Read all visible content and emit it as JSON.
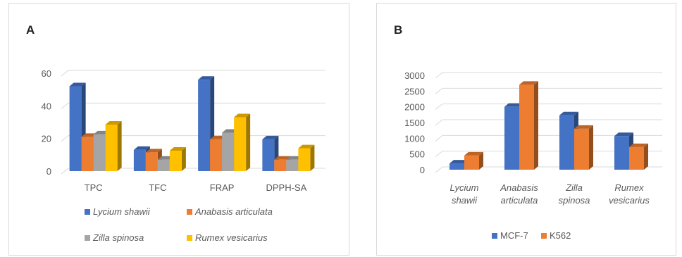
{
  "colors": {
    "blue": "#4472C4",
    "orange": "#ED7D31",
    "gray": "#A5A5A5",
    "yellow": "#FFC000",
    "grid": "#d9d9d9",
    "text": "#595959"
  },
  "panels": {
    "a_label": "A",
    "b_label": "B"
  },
  "chart_data": [
    {
      "type": "bar",
      "panel": "A",
      "title": "",
      "categories": [
        "TPC",
        "TFC",
        "FRAP",
        "DPPH-SA"
      ],
      "series": [
        {
          "name": "Lycium shawii",
          "color": "#4472C4",
          "values": [
            52,
            13,
            56,
            19.5
          ]
        },
        {
          "name": "Anabasis articulata",
          "color": "#ED7D31",
          "values": [
            21,
            11.5,
            19.5,
            7
          ]
        },
        {
          "name": "Zilla spinosa",
          "color": "#A5A5A5",
          "values": [
            22.5,
            7,
            23.5,
            7
          ]
        },
        {
          "name": "Rumex vesicarius",
          "color": "#FFC000",
          "values": [
            28.5,
            12.5,
            33,
            14
          ]
        }
      ],
      "ylim": [
        0,
        60
      ],
      "yticks": [
        "0",
        "20",
        "40",
        "60"
      ],
      "legend": "bottom",
      "grid": true
    },
    {
      "type": "bar",
      "panel": "B",
      "title": "",
      "categories": [
        [
          "Lycium",
          "shawii"
        ],
        [
          "Anabasis",
          "articulata"
        ],
        [
          "Zilla",
          "spinosa"
        ],
        [
          "Rumex",
          "vesicarius"
        ]
      ],
      "series": [
        {
          "name": "MCF-7",
          "color": "#4472C4",
          "values": [
            200,
            2000,
            1730,
            1070
          ]
        },
        {
          "name": "K562",
          "color": "#ED7D31",
          "values": [
            450,
            2700,
            1300,
            720
          ]
        }
      ],
      "ylim": [
        0,
        3000
      ],
      "yticks": [
        "0",
        "500",
        "1000",
        "1500",
        "2000",
        "2500",
        "3000"
      ],
      "legend": "bottom",
      "grid": true
    }
  ]
}
